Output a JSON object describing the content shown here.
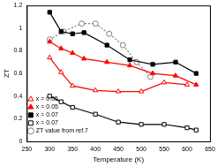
{
  "chart_data": {
    "type": "line",
    "x_label": "Temperature (K)",
    "y_label": "ZT",
    "xlim": [
      250,
      650
    ],
    "xticks": [
      250,
      300,
      350,
      400,
      450,
      500,
      550,
      600,
      650
    ],
    "ylim": [
      0,
      1.2
    ],
    "yticks": [
      0,
      0.2,
      0.4,
      0.6,
      0.8,
      1,
      1.2
    ],
    "grid": false,
    "legend": "upper right",
    "series": [
      {
        "name": "x = 0.05",
        "color": "#ff0000",
        "marker": "triangle-open",
        "line_style": "solid",
        "x": [
          300,
          325,
          350,
          400,
          450,
          500,
          550,
          600
        ],
        "values": [
          0.74,
          0.61,
          0.49,
          0.45,
          0.44,
          0.44,
          0.52,
          0.5
        ]
      },
      {
        "name": "x = 0.05",
        "color": "#ff0000",
        "marker": "triangle",
        "line_style": "solid",
        "x": [
          300,
          325,
          350,
          375,
          425,
          475,
          525,
          575,
          620
        ],
        "values": [
          0.88,
          0.82,
          0.78,
          0.73,
          0.7,
          0.67,
          0.6,
          0.58,
          0.5
        ]
      },
      {
        "name": "x = 0.07",
        "color": "#000000",
        "marker": "square",
        "line_style": "solid",
        "x": [
          300,
          325,
          350,
          375,
          425,
          475,
          525,
          575,
          620
        ],
        "values": [
          1.14,
          0.97,
          0.95,
          0.96,
          0.85,
          0.72,
          0.68,
          0.7,
          0.6
        ]
      },
      {
        "name": "x = 0.07",
        "color": "#000000",
        "marker": "square-open",
        "line_style": "solid",
        "x": [
          300,
          325,
          350,
          400,
          450,
          500,
          550,
          600,
          620
        ],
        "values": [
          0.4,
          0.35,
          0.3,
          0.24,
          0.17,
          0.15,
          0.15,
          0.12,
          0.1
        ]
      },
      {
        "name": "ZT value from ref.7",
        "color": "#808080",
        "marker": "circle-open",
        "line_style": "dotted",
        "x": [
          300,
          330,
          370,
          400,
          430,
          460,
          490,
          520
        ],
        "values": [
          0.9,
          0.97,
          1.04,
          1.04,
          0.95,
          0.85,
          0.7,
          0.57
        ]
      }
    ]
  }
}
